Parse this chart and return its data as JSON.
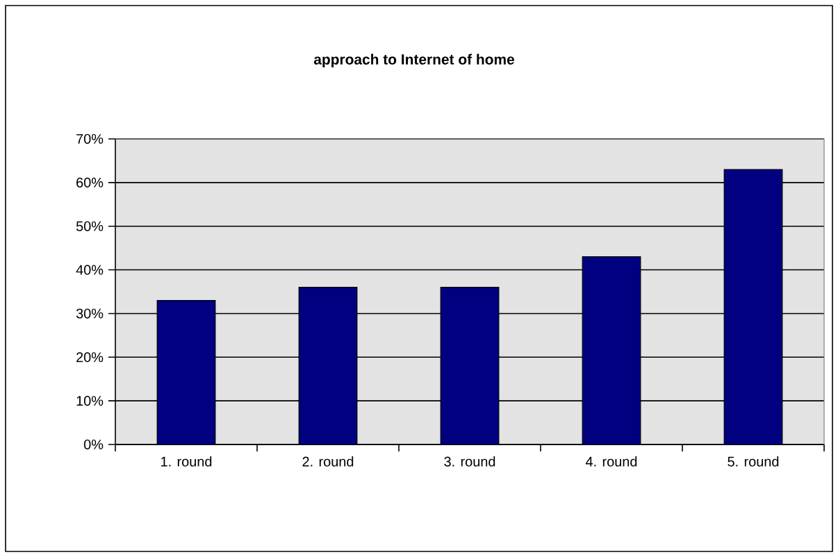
{
  "chart_data": {
    "type": "bar",
    "title": "approach to Internet of home",
    "categories": [
      "1. round",
      "2. round",
      "3. round",
      "4. round",
      "5. round"
    ],
    "values": [
      33,
      36,
      36,
      43,
      63
    ],
    "color": "#000080",
    "ylim": [
      0,
      70
    ],
    "yticks": [
      {
        "value": 0,
        "label": "0%"
      },
      {
        "value": 10,
        "label": "10%"
      },
      {
        "value": 20,
        "label": "20%"
      },
      {
        "value": 30,
        "label": "30%"
      },
      {
        "value": 40,
        "label": "40%"
      },
      {
        "value": 50,
        "label": "50%"
      },
      {
        "value": 60,
        "label": "60%"
      },
      {
        "value": 70,
        "label": "70%"
      }
    ],
    "grid": "y"
  }
}
